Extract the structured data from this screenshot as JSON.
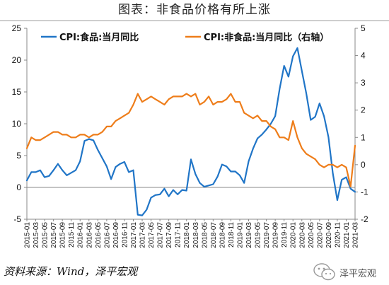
{
  "title": "图表：非食品价格有所上涨",
  "source": "资料来源：Wind，泽平宏观",
  "watermark": {
    "icon": "wechat-icon",
    "text": "泽平宏观"
  },
  "colors": {
    "food": "#2075c7",
    "nonfood": "#ee7d1a",
    "axis": "#888888"
  },
  "chart_data": {
    "type": "line",
    "title": "图表：非食品价格有所上涨",
    "left_ylim": [
      -5,
      25
    ],
    "left_yticks": [
      -5,
      0,
      5,
      10,
      15,
      20,
      25
    ],
    "right_ylim": [
      -2,
      5
    ],
    "right_yticks": [
      -2,
      -1,
      0,
      1,
      2,
      3,
      4,
      5
    ],
    "grid": false,
    "legend_placement": "top",
    "x_tick_labels": [
      "2015-01",
      "2015-03",
      "2015-05",
      "2015-07",
      "2015-09",
      "2015-11",
      "2016-01",
      "2016-03",
      "2016-05",
      "2016-07",
      "2016-09",
      "2016-11",
      "2017-01",
      "2017-03",
      "2017-05",
      "2017-07",
      "2017-09",
      "2017-11",
      "2018-01",
      "2018-03",
      "2018-05",
      "2018-07",
      "2018-09",
      "2018-11",
      "2019-01",
      "2019-03",
      "2019-05",
      "2019-07",
      "2019-09",
      "2019-11",
      "2020-01",
      "2020-03",
      "2020-05",
      "2020-07",
      "2020-09",
      "2020-11",
      "2021-01",
      "2021-03"
    ],
    "x": [
      "2015-01",
      "2015-02",
      "2015-03",
      "2015-04",
      "2015-05",
      "2015-06",
      "2015-07",
      "2015-08",
      "2015-09",
      "2015-10",
      "2015-11",
      "2015-12",
      "2016-01",
      "2016-02",
      "2016-03",
      "2016-04",
      "2016-05",
      "2016-06",
      "2016-07",
      "2016-08",
      "2016-09",
      "2016-10",
      "2016-11",
      "2016-12",
      "2017-01",
      "2017-02",
      "2017-03",
      "2017-04",
      "2017-05",
      "2017-06",
      "2017-07",
      "2017-08",
      "2017-09",
      "2017-10",
      "2017-11",
      "2017-12",
      "2018-01",
      "2018-02",
      "2018-03",
      "2018-04",
      "2018-05",
      "2018-06",
      "2018-07",
      "2018-08",
      "2018-09",
      "2018-10",
      "2018-11",
      "2018-12",
      "2019-01",
      "2019-02",
      "2019-03",
      "2019-04",
      "2019-05",
      "2019-06",
      "2019-07",
      "2019-08",
      "2019-09",
      "2019-10",
      "2019-11",
      "2019-12",
      "2020-01",
      "2020-02",
      "2020-03",
      "2020-04",
      "2020-05",
      "2020-06",
      "2020-07",
      "2020-08",
      "2020-09",
      "2020-10",
      "2020-11",
      "2020-12",
      "2021-01",
      "2021-02",
      "2021-03"
    ],
    "series": [
      {
        "name": "CPI:食品:当月同比",
        "axis": "left",
        "color": "#2075c7",
        "values": [
          1.1,
          2.4,
          2.4,
          2.7,
          1.6,
          1.8,
          2.7,
          3.7,
          2.7,
          1.9,
          2.3,
          2.7,
          4.1,
          7.3,
          7.6,
          7.4,
          5.9,
          4.6,
          3.3,
          1.3,
          3.2,
          3.7,
          4.0,
          2.4,
          2.7,
          -4.3,
          -4.4,
          -3.5,
          -1.6,
          -1.2,
          -1.1,
          -0.2,
          -1.4,
          -0.4,
          -1.1,
          -0.4,
          -0.5,
          4.4,
          2.1,
          0.7,
          0.1,
          0.3,
          0.5,
          1.7,
          3.6,
          3.3,
          2.5,
          2.5,
          1.9,
          0.7,
          4.1,
          6.1,
          7.7,
          8.3,
          9.1,
          10.0,
          11.2,
          15.5,
          19.1,
          17.4,
          20.6,
          21.9,
          18.3,
          14.8,
          10.6,
          11.1,
          13.2,
          11.2,
          7.9,
          2.2,
          -2.0,
          1.2,
          1.6,
          -0.2,
          -0.7
        ]
      },
      {
        "name": "CPI:非食品:当月同比（右轴）",
        "axis": "right",
        "color": "#ee7d1a",
        "values": [
          0.6,
          1.0,
          0.9,
          0.9,
          1.0,
          1.1,
          1.2,
          1.2,
          1.1,
          1.1,
          1.0,
          1.0,
          1.1,
          1.1,
          1.0,
          1.1,
          1.1,
          1.2,
          1.4,
          1.4,
          1.6,
          1.7,
          1.8,
          1.9,
          2.2,
          2.6,
          2.3,
          2.4,
          2.5,
          2.4,
          2.3,
          2.2,
          2.4,
          2.5,
          2.5,
          2.5,
          2.6,
          2.5,
          2.6,
          2.2,
          2.3,
          2.5,
          2.2,
          2.3,
          2.3,
          2.4,
          2.6,
          2.3,
          2.3,
          1.9,
          1.8,
          1.7,
          1.8,
          1.6,
          1.6,
          1.4,
          1.3,
          1.0,
          1.0,
          0.9,
          1.6,
          1.0,
          0.6,
          0.4,
          0.3,
          0.2,
          0.0,
          -0.1,
          0.0,
          0.0,
          -0.1,
          0.0,
          -0.1,
          -0.8,
          0.7
        ]
      }
    ]
  }
}
